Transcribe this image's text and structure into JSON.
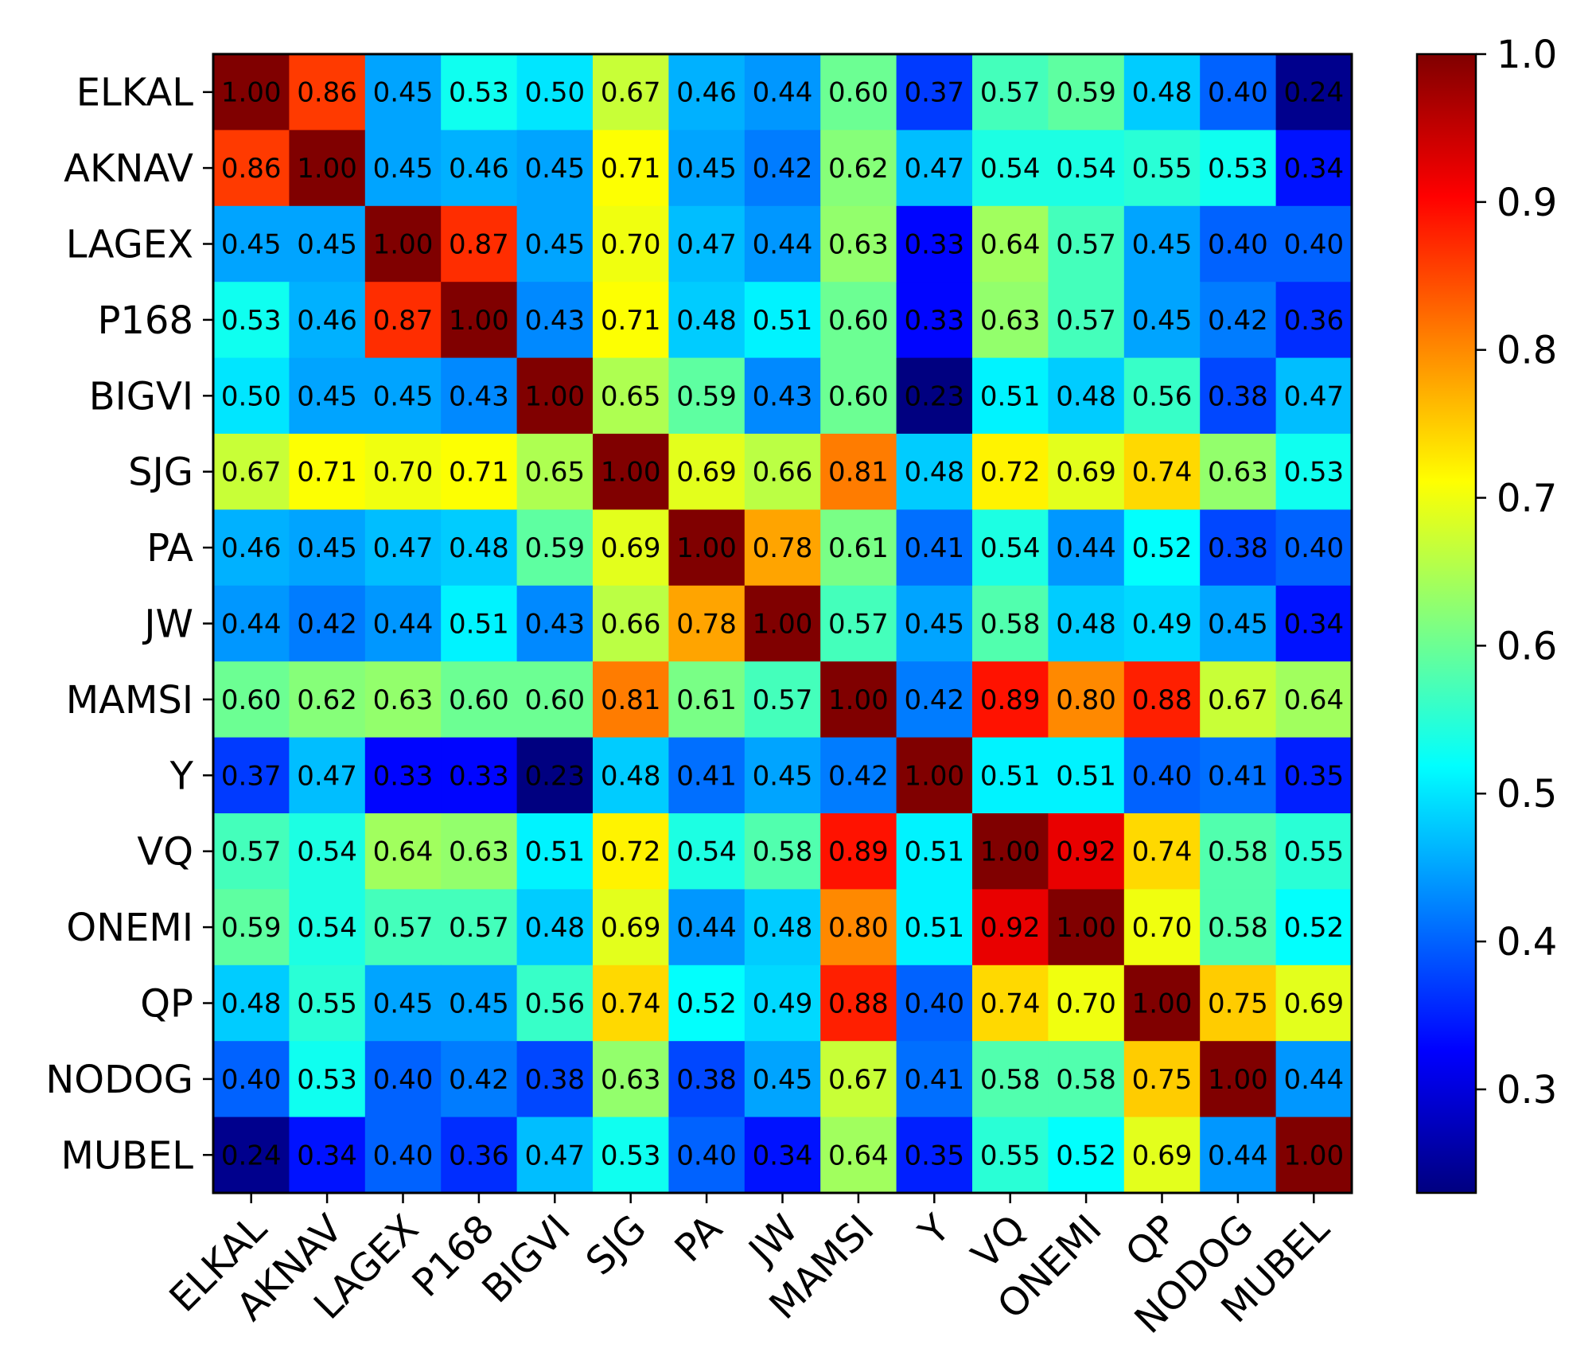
{
  "chart_data": {
    "type": "heatmap",
    "title": "",
    "xlabel": "",
    "ylabel": "",
    "row_labels": [
      "ELKAL",
      "AKNAV",
      "LAGEX",
      "P168",
      "BIGVI",
      "SJG",
      "PA",
      "JW",
      "MAMSI",
      "Y",
      "VQ",
      "ONEMI",
      "QP",
      "NODOG",
      "MUBEL"
    ],
    "col_labels": [
      "ELKAL",
      "AKNAV",
      "LAGEX",
      "P168",
      "BIGVI",
      "SJG",
      "PA",
      "JW",
      "MAMSI",
      "Y",
      "VQ",
      "ONEMI",
      "QP",
      "NODOG",
      "MUBEL"
    ],
    "values": [
      [
        1.0,
        0.86,
        0.45,
        0.53,
        0.5,
        0.67,
        0.46,
        0.44,
        0.6,
        0.37,
        0.57,
        0.59,
        0.48,
        0.4,
        0.24
      ],
      [
        0.86,
        1.0,
        0.45,
        0.46,
        0.45,
        0.71,
        0.45,
        0.42,
        0.62,
        0.47,
        0.54,
        0.54,
        0.55,
        0.53,
        0.34
      ],
      [
        0.45,
        0.45,
        1.0,
        0.87,
        0.45,
        0.7,
        0.47,
        0.44,
        0.63,
        0.33,
        0.64,
        0.57,
        0.45,
        0.4,
        0.4
      ],
      [
        0.53,
        0.46,
        0.87,
        1.0,
        0.43,
        0.71,
        0.48,
        0.51,
        0.6,
        0.33,
        0.63,
        0.57,
        0.45,
        0.42,
        0.36
      ],
      [
        0.5,
        0.45,
        0.45,
        0.43,
        1.0,
        0.65,
        0.59,
        0.43,
        0.6,
        0.23,
        0.51,
        0.48,
        0.56,
        0.38,
        0.47
      ],
      [
        0.67,
        0.71,
        0.7,
        0.71,
        0.65,
        1.0,
        0.69,
        0.66,
        0.81,
        0.48,
        0.72,
        0.69,
        0.74,
        0.63,
        0.53
      ],
      [
        0.46,
        0.45,
        0.47,
        0.48,
        0.59,
        0.69,
        1.0,
        0.78,
        0.61,
        0.41,
        0.54,
        0.44,
        0.52,
        0.38,
        0.4
      ],
      [
        0.44,
        0.42,
        0.44,
        0.51,
        0.43,
        0.66,
        0.78,
        1.0,
        0.57,
        0.45,
        0.58,
        0.48,
        0.49,
        0.45,
        0.34
      ],
      [
        0.6,
        0.62,
        0.63,
        0.6,
        0.6,
        0.81,
        0.61,
        0.57,
        1.0,
        0.42,
        0.89,
        0.8,
        0.88,
        0.67,
        0.64
      ],
      [
        0.37,
        0.47,
        0.33,
        0.33,
        0.23,
        0.48,
        0.41,
        0.45,
        0.42,
        1.0,
        0.51,
        0.51,
        0.4,
        0.41,
        0.35
      ],
      [
        0.57,
        0.54,
        0.64,
        0.63,
        0.51,
        0.72,
        0.54,
        0.58,
        0.89,
        0.51,
        1.0,
        0.92,
        0.74,
        0.58,
        0.55
      ],
      [
        0.59,
        0.54,
        0.57,
        0.57,
        0.48,
        0.69,
        0.44,
        0.48,
        0.8,
        0.51,
        0.92,
        1.0,
        0.7,
        0.58,
        0.52
      ],
      [
        0.48,
        0.55,
        0.45,
        0.45,
        0.56,
        0.74,
        0.52,
        0.49,
        0.88,
        0.4,
        0.74,
        0.7,
        1.0,
        0.75,
        0.69
      ],
      [
        0.4,
        0.53,
        0.4,
        0.42,
        0.38,
        0.63,
        0.38,
        0.45,
        0.67,
        0.41,
        0.58,
        0.58,
        0.75,
        1.0,
        0.44
      ],
      [
        0.24,
        0.34,
        0.4,
        0.36,
        0.47,
        0.53,
        0.4,
        0.34,
        0.64,
        0.35,
        0.55,
        0.52,
        0.69,
        0.44,
        1.0
      ]
    ],
    "colormap": "jet",
    "vmin": 0.23,
    "vmax": 1.0,
    "colorbar": {
      "ticks": [
        0.3,
        0.4,
        0.5,
        0.6,
        0.7,
        0.8,
        0.9,
        1.0
      ],
      "tick_labels": [
        "0.3",
        "0.4",
        "0.5",
        "0.6",
        "0.7",
        "0.8",
        "0.9",
        "1.0"
      ]
    },
    "grid": false,
    "legend": "colorbar-right"
  }
}
